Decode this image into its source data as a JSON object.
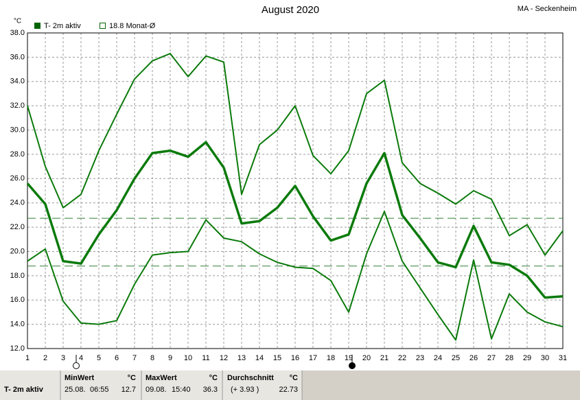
{
  "chart_data": {
    "type": "line",
    "title": "August 2020",
    "station": "MA - Seckenheim",
    "y_unit": "°C",
    "legend": [
      "T- 2m aktiv",
      "18.8 Monat-Ø"
    ],
    "legend_color": "#006400",
    "x": [
      1,
      2,
      3,
      4,
      5,
      6,
      7,
      8,
      9,
      10,
      11,
      12,
      13,
      14,
      15,
      16,
      17,
      18,
      19,
      20,
      21,
      22,
      23,
      24,
      25,
      26,
      27,
      28,
      29,
      30,
      31
    ],
    "xlim": [
      1,
      31
    ],
    "xticks": [
      1,
      2,
      3,
      4,
      5,
      6,
      7,
      8,
      9,
      10,
      11,
      12,
      13,
      14,
      15,
      16,
      17,
      18,
      19,
      20,
      21,
      22,
      23,
      24,
      25,
      26,
      27,
      28,
      29,
      30,
      31
    ],
    "ylim": [
      12,
      38
    ],
    "yticks": [
      {
        "value": 12,
        "label": "12.0"
      },
      {
        "value": 14,
        "label": "14.0"
      },
      {
        "value": 16,
        "label": "16.0"
      },
      {
        "value": 18,
        "label": "18.0"
      },
      {
        "value": 20,
        "label": "20.0"
      },
      {
        "value": 22,
        "label": "22.0"
      },
      {
        "value": 24,
        "label": "24.0"
      },
      {
        "value": 26,
        "label": "26.0"
      },
      {
        "value": 28,
        "label": "28.0"
      },
      {
        "value": 30,
        "label": "30.0"
      },
      {
        "value": 32,
        "label": "32.0"
      },
      {
        "value": 34,
        "label": "34.0"
      },
      {
        "value": 36,
        "label": "36.0"
      },
      {
        "value": 38,
        "label": "38.0"
      }
    ],
    "grid": true,
    "hlines": [
      22.73,
      18.8
    ],
    "hline_color": "#2e7d32",
    "series": [
      {
        "color": "#0a7a0a",
        "width": 2,
        "values": [
          32.0,
          27.0,
          23.6,
          24.7,
          28.3,
          31.3,
          34.2,
          35.7,
          36.3,
          34.4,
          36.1,
          35.6,
          24.7,
          28.8,
          30.0,
          32.0,
          27.9,
          26.4,
          28.3,
          33.0,
          34.1,
          27.3,
          25.6,
          24.8,
          23.9,
          25.0,
          24.3,
          21.3,
          22.2,
          19.7,
          21.7
        ]
      },
      {
        "color": "#0a7a0a",
        "width": 3.5,
        "values": [
          25.6,
          23.9,
          19.2,
          19.0,
          21.4,
          23.4,
          26.0,
          28.1,
          28.3,
          27.8,
          29.0,
          26.9,
          22.3,
          22.5,
          23.6,
          25.4,
          22.9,
          20.9,
          21.4,
          25.6,
          28.1,
          23.0,
          21.1,
          19.1,
          18.7,
          22.1,
          19.1,
          18.9,
          18.0,
          16.2,
          16.3
        ]
      },
      {
        "color": "#0a7a0a",
        "width": 2,
        "values": [
          19.2,
          20.2,
          15.9,
          14.1,
          14.0,
          14.3,
          17.3,
          19.7,
          19.9,
          20.0,
          22.6,
          21.1,
          20.8,
          19.8,
          19.1,
          18.7,
          18.6,
          17.6,
          15.0,
          19.8,
          23.3,
          19.2,
          17.0,
          14.8,
          12.7,
          19.3,
          12.8,
          16.5,
          15.0,
          14.2,
          13.8
        ]
      }
    ]
  },
  "stats": {
    "label": "T- 2m aktiv",
    "unit": "°C",
    "min": {
      "title": "MinWert",
      "date": "25.08.",
      "time": "06:55",
      "value": "12.7"
    },
    "max": {
      "title": "MaxWert",
      "date": "09.08.",
      "time": "15:40",
      "value": "36.3"
    },
    "avg": {
      "title": "Durchschnitt",
      "diff": "(+ 3.93 )",
      "value": "22.73"
    }
  }
}
